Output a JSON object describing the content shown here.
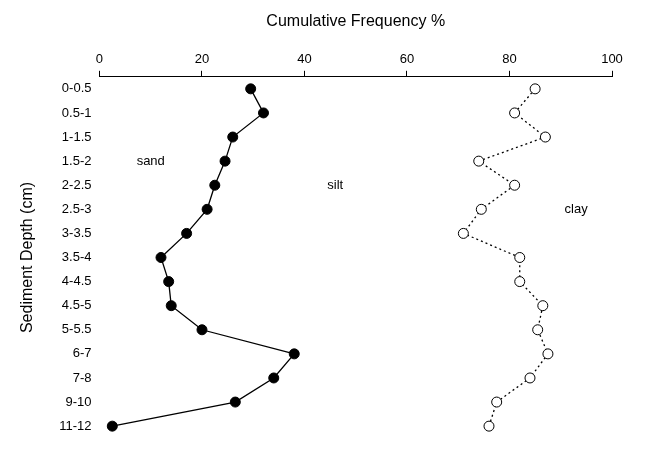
{
  "chart_data": {
    "type": "line",
    "x_label": "Cumulative Frequency %",
    "y_label": "Sediment Depth (cm)",
    "orientation": "horizontal",
    "categories": [
      "0-0.5",
      "0.5-1",
      "1-1.5",
      "1.5-2",
      "2-2.5",
      "2.5-3",
      "3-3.5",
      "3.5-4",
      "4-4.5",
      "4.5-5",
      "5-5.5",
      "6-7",
      "7-8",
      "9-10",
      "11-12"
    ],
    "series": [
      {
        "color": "#000000",
        "marker": "filled circle",
        "line_style": "solid",
        "values": [
          29.5,
          32,
          26,
          24.5,
          22.5,
          21,
          17,
          12,
          13.5,
          14,
          20,
          38,
          34,
          26.5,
          2.5
        ]
      },
      {
        "color": "#000000",
        "marker": "open circle",
        "line_style": "dotted",
        "values": [
          85,
          81,
          87,
          74,
          81,
          74.5,
          71,
          82,
          82,
          86.5,
          85.5,
          87.5,
          84,
          77.5,
          76
        ]
      }
    ],
    "xlim": [
      0,
      100
    ],
    "xticks": [
      0,
      20,
      40,
      60,
      80,
      100
    ],
    "grid": false,
    "annotations": [
      {
        "text": "sand",
        "x": 10,
        "y": "1.5-2"
      },
      {
        "text": "silt",
        "x": 46,
        "y": "2-2.5"
      },
      {
        "text": "clay",
        "x": 93,
        "y": "2.5-3"
      }
    ]
  }
}
